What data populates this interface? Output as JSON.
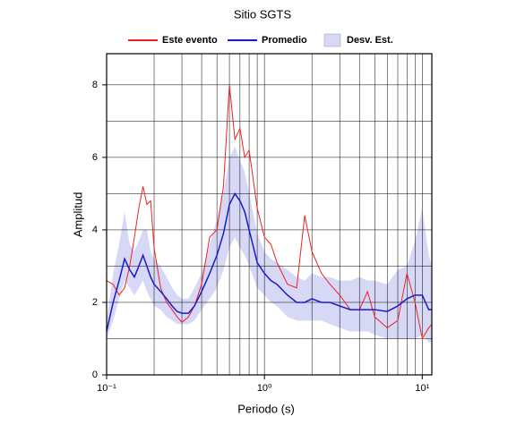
{
  "chart_data": {
    "type": "line",
    "title": "Sitio SGTS",
    "xlabel": "Periodo (s)",
    "ylabel": "Amplitud",
    "xscale": "log",
    "grid": true,
    "legend": "top",
    "xlim": [
      0.1,
      11.5
    ],
    "ylim": [
      0,
      8.86
    ],
    "xticks": [
      {
        "value": 0.1,
        "label": "10⁻¹"
      },
      {
        "value": 1,
        "label": "10⁰"
      },
      {
        "value": 10,
        "label": "10¹"
      }
    ],
    "xminor": [
      0.2,
      0.3,
      0.4,
      0.5,
      0.6,
      0.7,
      0.8,
      0.9,
      2,
      3,
      4,
      5,
      6,
      7,
      8,
      9
    ],
    "yticks": [
      0,
      2,
      4,
      6,
      8
    ],
    "yminor": [
      1,
      3,
      5,
      7
    ],
    "x": [
      0.1,
      0.11,
      0.12,
      0.13,
      0.14,
      0.15,
      0.16,
      0.17,
      0.18,
      0.19,
      0.2,
      0.22,
      0.24,
      0.26,
      0.28,
      0.3,
      0.33,
      0.36,
      0.4,
      0.45,
      0.5,
      0.55,
      0.6,
      0.65,
      0.7,
      0.75,
      0.8,
      0.9,
      1.0,
      1.1,
      1.2,
      1.4,
      1.6,
      1.8,
      2.0,
      2.3,
      2.6,
      3.0,
      3.5,
      4.0,
      4.5,
      5.0,
      6.0,
      7.0,
      8.0,
      9.0,
      10,
      11,
      11.5
    ],
    "band": {
      "name": "Desv. Est.",
      "color": "#d6d8f6",
      "lower": [
        1.0,
        1.5,
        2.1,
        2.6,
        2.4,
        2.2,
        2.4,
        2.6,
        2.3,
        2.1,
        1.9,
        1.8,
        1.6,
        1.5,
        1.4,
        1.4,
        1.4,
        1.5,
        1.8,
        2.1,
        2.4,
        2.9,
        3.5,
        3.8,
        3.5,
        3.3,
        3.0,
        2.4,
        2.2,
        2.0,
        1.9,
        1.6,
        1.5,
        1.5,
        1.5,
        1.5,
        1.4,
        1.3,
        1.2,
        1.2,
        1.2,
        1.1,
        1.0,
        1.0,
        1.0,
        1.0,
        1.1,
        0.9,
        0.9
      ],
      "upper": [
        1.5,
        2.8,
        3.6,
        4.5,
        3.6,
        3.4,
        3.7,
        4.0,
        4.0,
        3.4,
        3.2,
        3.0,
        2.7,
        2.4,
        2.2,
        2.1,
        2.1,
        2.4,
        2.8,
        3.6,
        4.3,
        5.0,
        6.0,
        6.3,
        5.9,
        5.6,
        5.0,
        3.9,
        3.4,
        3.2,
        3.1,
        2.9,
        2.7,
        2.6,
        2.8,
        2.7,
        2.7,
        2.6,
        2.6,
        2.7,
        2.6,
        2.6,
        2.5,
        2.9,
        3.0,
        3.7,
        4.6,
        3.3,
        3.0
      ]
    },
    "series": [
      {
        "name": "Este evento",
        "color": "#ee2222",
        "values": [
          2.6,
          2.5,
          2.2,
          2.4,
          3.0,
          3.8,
          4.6,
          5.2,
          4.7,
          4.8,
          3.5,
          2.4,
          2.0,
          1.8,
          1.6,
          1.45,
          1.6,
          1.9,
          2.5,
          3.8,
          4.0,
          5.2,
          8.0,
          6.5,
          6.8,
          6.0,
          6.2,
          4.6,
          3.8,
          3.6,
          3.1,
          2.5,
          2.4,
          4.4,
          3.4,
          2.8,
          2.5,
          2.2,
          1.8,
          1.8,
          2.3,
          1.6,
          1.3,
          1.5,
          2.8,
          2.0,
          1.0,
          1.3,
          1.4
        ]
      },
      {
        "name": "Promedio",
        "color": "#1a1acc",
        "values": [
          1.2,
          2.0,
          2.6,
          3.2,
          2.9,
          2.7,
          3.0,
          3.3,
          3.0,
          2.7,
          2.5,
          2.3,
          2.1,
          1.9,
          1.75,
          1.7,
          1.7,
          1.9,
          2.3,
          2.8,
          3.3,
          3.9,
          4.7,
          5.0,
          4.8,
          4.5,
          4.0,
          3.1,
          2.8,
          2.6,
          2.5,
          2.2,
          2.0,
          2.0,
          2.1,
          2.0,
          2.0,
          1.9,
          1.8,
          1.8,
          1.8,
          1.8,
          1.75,
          1.9,
          2.1,
          2.2,
          2.2,
          1.8,
          1.8
        ]
      }
    ]
  }
}
